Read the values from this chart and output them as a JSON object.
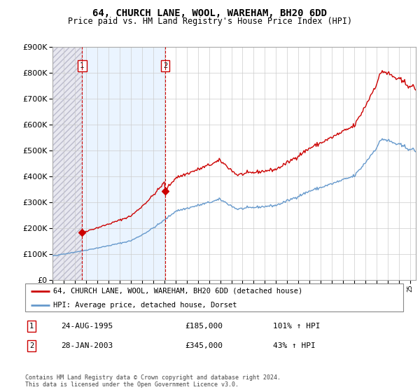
{
  "title": "64, CHURCH LANE, WOOL, WAREHAM, BH20 6DD",
  "subtitle": "Price paid vs. HM Land Registry's House Price Index (HPI)",
  "ylim": [
    0,
    900000
  ],
  "xlim_start": 1993.0,
  "xlim_end": 2025.5,
  "sale1_date": 1995.65,
  "sale1_price": 185000,
  "sale1_label": "1",
  "sale2_date": 2003.08,
  "sale2_price": 345000,
  "sale2_label": "2",
  "legend_line1": "64, CHURCH LANE, WOOL, WAREHAM, BH20 6DD (detached house)",
  "legend_line2": "HPI: Average price, detached house, Dorset",
  "table_row1_label": "1",
  "table_row1_date": "24-AUG-1995",
  "table_row1_price": "£185,000",
  "table_row1_hpi": "101% ↑ HPI",
  "table_row2_label": "2",
  "table_row2_date": "28-JAN-2003",
  "table_row2_price": "£345,000",
  "table_row2_hpi": "43% ↑ HPI",
  "footnote": "Contains HM Land Registry data © Crown copyright and database right 2024.\nThis data is licensed under the Open Government Licence v3.0.",
  "property_line_color": "#cc0000",
  "hpi_line_color": "#6699cc",
  "hatch_bg_color": "#e8e8f0",
  "light_blue_fill": "#ddeeff"
}
